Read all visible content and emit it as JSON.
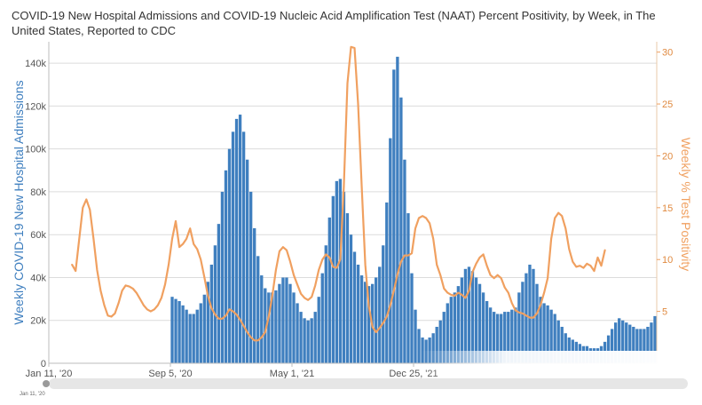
{
  "chart_data": {
    "type": "bar+line",
    "title": "COVID-19 New Hospital Admissions and COVID-19 Nucleic Acid Amplification Test (NAAT) Percent Positivity, by Week, in The United States, Reported to CDC",
    "y_left_label": "Weekly COVID-19 New Hospital Admissions",
    "y_right_label": "Weekly % Test Positivity",
    "y_left_range": [
      0,
      150000
    ],
    "y_right_range": [
      0,
      31
    ],
    "y_left_ticks": [
      "0",
      "20k",
      "40k",
      "60k",
      "80k",
      "100k",
      "120k",
      "140k"
    ],
    "y_right_ticks": [
      "5",
      "10",
      "15",
      "20",
      "25",
      "30"
    ],
    "x_ticks": [
      "Jan 11, '20",
      "Sep 5, '20",
      "May 1, '21",
      "Dec 25, '21"
    ],
    "bar_color": "#3f7fbf",
    "line_color": "#f0a060",
    "series": [
      {
        "name": "Weekly COVID-19 New Hospital Admissions",
        "type": "bar",
        "week_index_start": 34,
        "values": [
          31000,
          30000,
          29000,
          27000,
          25000,
          23000,
          23000,
          25000,
          28000,
          32000,
          38000,
          46000,
          55000,
          65000,
          80000,
          90000,
          100000,
          108000,
          114000,
          116000,
          108000,
          95000,
          80000,
          63000,
          50000,
          41000,
          35000,
          33000,
          33000,
          34000,
          37000,
          40000,
          40000,
          37000,
          33000,
          28000,
          24000,
          21000,
          20000,
          21000,
          24000,
          31000,
          42000,
          55000,
          68000,
          78000,
          85000,
          86000,
          80000,
          70000,
          60000,
          52000,
          46000,
          41000,
          38000,
          36000,
          37000,
          40000,
          45000,
          55000,
          75000,
          105000,
          137000,
          143000,
          124000,
          95000,
          70000,
          42000,
          25000,
          16000,
          12000,
          11000,
          12000,
          14000,
          17000,
          20000,
          24000,
          28000,
          31000,
          33000,
          36000,
          40000,
          44000,
          45000,
          43000,
          40000,
          37000,
          33000,
          29000,
          26000,
          24000,
          23000,
          23000,
          24000,
          24000,
          25000,
          26000,
          33000,
          38000,
          42000,
          46000,
          44000,
          37000,
          31000,
          28000,
          27000,
          25000,
          23000,
          20000,
          17000,
          14000,
          12000,
          11000,
          10000,
          9000,
          8000,
          8000,
          7000,
          7000,
          7000,
          8000,
          10000,
          13000,
          16000,
          19000,
          21000,
          20000,
          19000,
          18000,
          17000,
          16000,
          16000,
          16000,
          17000,
          19000,
          22000
        ]
      },
      {
        "name": "Weekly % Test Positivity",
        "type": "line",
        "week_index_start": 6,
        "values": [
          9.5,
          8.9,
          12,
          15,
          15.8,
          14.8,
          12,
          9,
          7,
          5.6,
          4.6,
          4.5,
          4.8,
          5.8,
          7,
          7.5,
          7.4,
          7.2,
          6.8,
          6.2,
          5.6,
          5.2,
          5,
          5.2,
          5.6,
          6.3,
          7.6,
          9.5,
          12,
          13.7,
          11.2,
          11.5,
          12,
          13,
          11.5,
          11,
          10,
          8.3,
          6.5,
          5.3,
          4.7,
          4.3,
          4.3,
          4.6,
          5.2,
          5,
          4.7,
          4.2,
          3.6,
          3,
          2.5,
          2.2,
          2.2,
          2.5,
          3,
          4.5,
          6.5,
          9,
          10.8,
          11.2,
          10.9,
          9.8,
          8.5,
          7.6,
          6.7,
          6.3,
          6.1,
          6.4,
          7.5,
          9,
          10,
          10.5,
          10.2,
          9.3,
          9.2,
          10,
          17,
          27,
          30.5,
          30.4,
          25,
          17,
          9.5,
          5.5,
          3.5,
          3,
          3.4,
          3.9,
          4.5,
          5.6,
          7,
          8.6,
          9.8,
          10.4,
          10.4,
          10.6,
          13,
          14,
          14.2,
          14,
          13.5,
          12,
          9.5,
          8.5,
          7.2,
          6.8,
          6.6,
          6.5,
          6.8,
          6.6,
          6.3,
          7,
          8.8,
          9.6,
          10.2,
          10.5,
          9.4,
          8.5,
          8.2,
          8.5,
          8.2,
          7.3,
          6.8,
          5.8,
          5.1,
          4.9,
          4.8,
          4.6,
          4.4,
          4.4,
          4.8,
          5.6,
          6.8,
          8.2,
          12,
          14,
          14.5,
          14.2,
          13,
          11,
          9.8,
          9.3,
          9.4,
          9.2,
          9.6,
          9.4,
          8.9,
          10.2,
          9.4,
          10.9
        ]
      }
    ]
  }
}
